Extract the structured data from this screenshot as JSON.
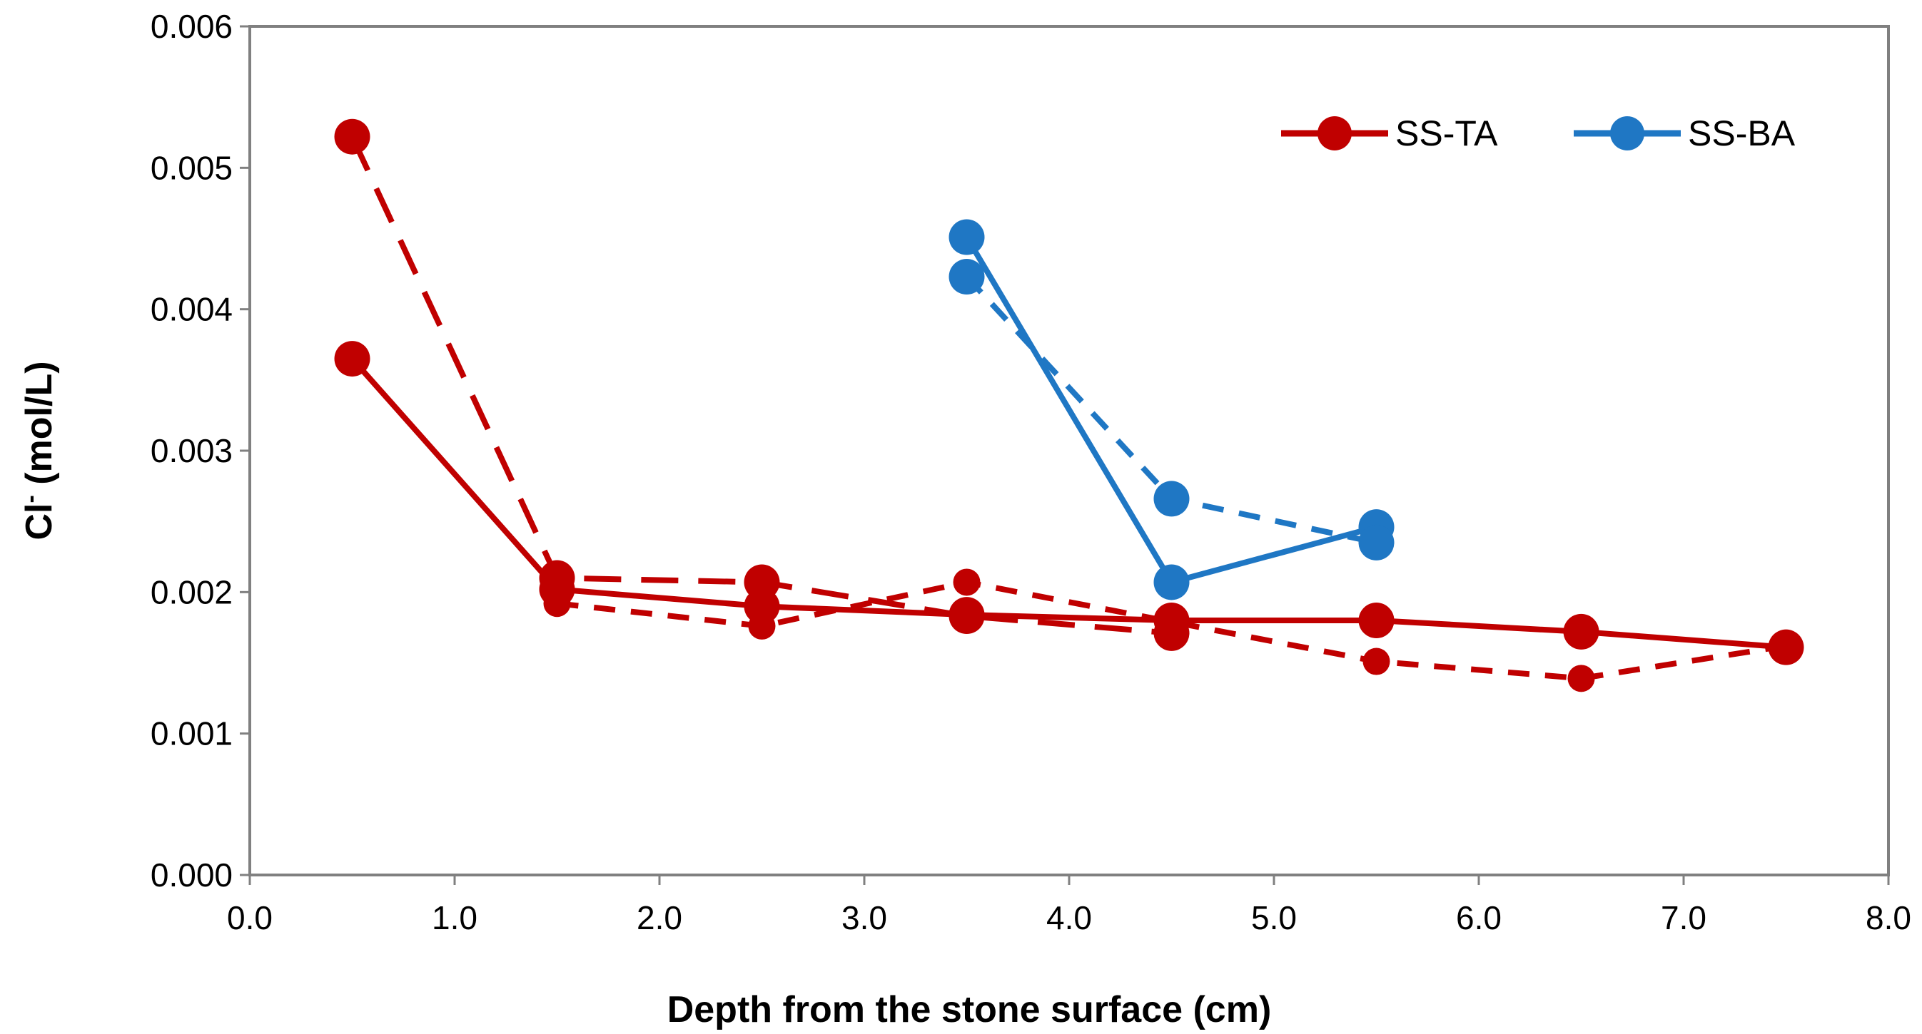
{
  "chart_data": {
    "type": "line",
    "title": "",
    "xlabel": "Depth from the stone surface (cm)",
    "ylabel_main": "Cl",
    "ylabel_sup": "-",
    "ylabel_unit": " (mol/L)",
    "xlim": [
      0,
      8
    ],
    "ylim": [
      0,
      0.006
    ],
    "xticks": [
      0,
      1,
      2,
      3,
      4,
      5,
      6,
      7,
      8
    ],
    "xtick_labels": [
      "0.0",
      "1.0",
      "2.0",
      "3.0",
      "4.0",
      "5.0",
      "6.0",
      "7.0",
      "8.0"
    ],
    "yticks": [
      0,
      0.001,
      0.002,
      0.003,
      0.004,
      0.005,
      0.006
    ],
    "ytick_labels": [
      "0.000",
      "0.001",
      "0.002",
      "0.003",
      "0.004",
      "0.005",
      "0.006"
    ],
    "grid": false,
    "legend_position": "top-right",
    "legend": [
      {
        "label": "SS-TA",
        "color": "#c00000"
      },
      {
        "label": "SS-BA",
        "color": "#1f77c4"
      }
    ],
    "series": [
      {
        "name": "SS-TA",
        "color": "#c00000",
        "dash": "solid",
        "marker_size": "large",
        "x": [
          0.5,
          1.5,
          2.5,
          3.5,
          4.5,
          5.5,
          6.5,
          7.5
        ],
        "y": [
          0.00365,
          0.00202,
          0.0019,
          0.00184,
          0.0018,
          0.0018,
          0.00172,
          0.00161
        ]
      },
      {
        "name": "SS-TA",
        "color": "#c00000",
        "dash": "long",
        "marker_size": "large",
        "x": [
          0.5,
          1.5,
          2.5,
          3.5,
          4.5
        ],
        "y": [
          0.00522,
          0.0021,
          0.00207,
          0.00183,
          0.00171
        ]
      },
      {
        "name": "SS-TA",
        "color": "#c00000",
        "dash": "short",
        "marker_size": "small",
        "x": [
          1.5,
          2.5,
          3.5,
          4.5,
          5.5,
          6.5,
          7.5
        ],
        "y": [
          0.00192,
          0.00176,
          0.00207,
          0.00179,
          0.00151,
          0.00139,
          0.00162
        ]
      },
      {
        "name": "SS-BA",
        "color": "#1f77c4",
        "dash": "solid",
        "marker_size": "large",
        "x": [
          3.5,
          4.5,
          5.5
        ],
        "y": [
          0.00451,
          0.00207,
          0.00246
        ]
      },
      {
        "name": "SS-BA",
        "color": "#1f77c4",
        "dash": "short",
        "marker_size": "large",
        "x": [
          3.5,
          4.5,
          5.5
        ],
        "y": [
          0.00423,
          0.00266,
          0.00235
        ]
      }
    ]
  }
}
